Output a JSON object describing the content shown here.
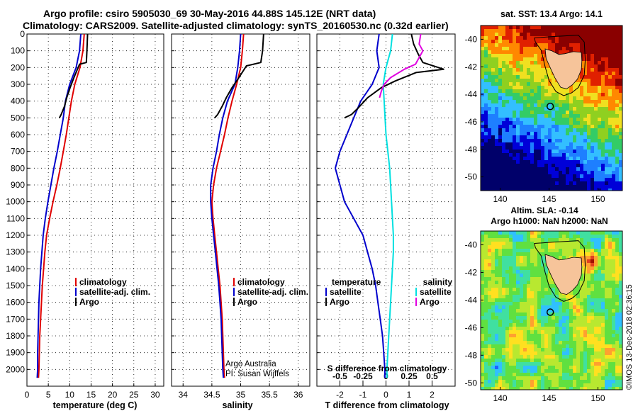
{
  "title": {
    "line1": "Argo profile: csiro 5905030_69 30-May-2016 44.88S 145.12E (NRT data)",
    "line2": "Climatology: CARS2009. Satellite-adjusted climatology: synTS_20160530.nc (0.32d earlier)"
  },
  "credit": {
    "line1": "Argo Australia",
    "line2": "PI: Susan Wijffels"
  },
  "stamp": "©IMOS 13-Dec-2018 02:36:15",
  "colors": {
    "climatology": "#e00000",
    "satellite": "#0000cc",
    "argo": "#000000",
    "sat_salinity": "#00e0e0",
    "argo_salinity": "#e000e0",
    "land": "#f6c49a"
  },
  "chart_data": [
    {
      "id": "temperature",
      "type": "line",
      "xlabel": "temperature (deg C)",
      "ylabel": "",
      "xlim": [
        0,
        32
      ],
      "ylim": [
        2100,
        0
      ],
      "xticks": [
        0,
        5,
        10,
        15,
        20,
        25,
        30
      ],
      "yticks": [
        0,
        100,
        200,
        300,
        400,
        500,
        600,
        700,
        800,
        900,
        1000,
        1100,
        1200,
        1300,
        1400,
        1500,
        1600,
        1700,
        1800,
        1900,
        2000
      ],
      "legend": [
        "climatology",
        "satellite-adj. clim.",
        "Argo"
      ],
      "series": [
        {
          "name": "climatology",
          "color": "#e00000",
          "points": [
            [
              13.4,
              0
            ],
            [
              13.1,
              100
            ],
            [
              12.4,
              200
            ],
            [
              11.2,
              300
            ],
            [
              10.4,
              400
            ],
            [
              9.8,
              500
            ],
            [
              9.2,
              600
            ],
            [
              8.5,
              700
            ],
            [
              7.8,
              800
            ],
            [
              7.0,
              900
            ],
            [
              6.1,
              1000
            ],
            [
              5.3,
              1100
            ],
            [
              4.6,
              1200
            ],
            [
              4.2,
              1300
            ],
            [
              3.9,
              1400
            ],
            [
              3.6,
              1500
            ],
            [
              3.4,
              1600
            ],
            [
              3.2,
              1700
            ],
            [
              3.0,
              1800
            ],
            [
              2.9,
              1900
            ],
            [
              2.8,
              2000
            ],
            [
              2.7,
              2050
            ]
          ]
        },
        {
          "name": "satellite-adj. clim.",
          "color": "#0000cc",
          "points": [
            [
              12.6,
              0
            ],
            [
              12.3,
              100
            ],
            [
              11.5,
              200
            ],
            [
              10.0,
              300
            ],
            [
              9.0,
              400
            ],
            [
              8.5,
              500
            ],
            [
              7.8,
              600
            ],
            [
              7.1,
              700
            ],
            [
              6.3,
              800
            ],
            [
              5.6,
              900
            ],
            [
              4.9,
              1000
            ],
            [
              4.3,
              1100
            ],
            [
              3.8,
              1200
            ],
            [
              3.5,
              1300
            ],
            [
              3.2,
              1400
            ],
            [
              3.0,
              1500
            ],
            [
              2.8,
              1600
            ],
            [
              2.7,
              1700
            ],
            [
              2.6,
              1800
            ],
            [
              2.5,
              1900
            ],
            [
              2.5,
              2000
            ],
            [
              2.4,
              2050
            ]
          ]
        },
        {
          "name": "Argo",
          "color": "#000000",
          "points": [
            [
              14.2,
              -10
            ],
            [
              14.1,
              60
            ],
            [
              14.0,
              120
            ],
            [
              13.9,
              170
            ],
            [
              12.3,
              180
            ],
            [
              11.0,
              260
            ],
            [
              10.1,
              320
            ],
            [
              9.3,
              380
            ],
            [
              8.8,
              430
            ],
            [
              8.0,
              480
            ],
            [
              7.6,
              500
            ]
          ]
        }
      ]
    },
    {
      "id": "salinity",
      "type": "line",
      "xlabel": "salinity",
      "ylabel": "",
      "xlim": [
        33.8,
        36.2
      ],
      "ylim": [
        2100,
        0
      ],
      "xticks": [
        34,
        34.5,
        35,
        35.5,
        36
      ],
      "legend": [
        "climatology",
        "satellite-adj. clim.",
        "Argo"
      ],
      "series": [
        {
          "name": "climatology",
          "color": "#e00000",
          "points": [
            [
              35.05,
              0
            ],
            [
              35.03,
              100
            ],
            [
              35.0,
              200
            ],
            [
              34.93,
              300
            ],
            [
              34.85,
              400
            ],
            [
              34.78,
              500
            ],
            [
              34.72,
              600
            ],
            [
              34.65,
              700
            ],
            [
              34.58,
              800
            ],
            [
              34.53,
              900
            ],
            [
              34.5,
              1000
            ],
            [
              34.52,
              1100
            ],
            [
              34.55,
              1200
            ],
            [
              34.58,
              1300
            ],
            [
              34.61,
              1400
            ],
            [
              34.64,
              1500
            ],
            [
              34.66,
              1600
            ],
            [
              34.68,
              1700
            ],
            [
              34.69,
              1800
            ],
            [
              34.7,
              1900
            ],
            [
              34.71,
              2000
            ],
            [
              34.72,
              2050
            ]
          ]
        },
        {
          "name": "satellite-adj. clim.",
          "color": "#0000cc",
          "points": [
            [
              35.0,
              0
            ],
            [
              34.98,
              100
            ],
            [
              34.95,
              200
            ],
            [
              34.9,
              300
            ],
            [
              34.77,
              400
            ],
            [
              34.69,
              500
            ],
            [
              34.63,
              600
            ],
            [
              34.58,
              700
            ],
            [
              34.52,
              800
            ],
            [
              34.48,
              900
            ],
            [
              34.48,
              1000
            ],
            [
              34.5,
              1100
            ],
            [
              34.53,
              1200
            ],
            [
              34.56,
              1300
            ],
            [
              34.59,
              1400
            ],
            [
              34.62,
              1500
            ],
            [
              34.64,
              1600
            ],
            [
              34.66,
              1700
            ],
            [
              34.67,
              1800
            ],
            [
              34.68,
              1900
            ],
            [
              34.69,
              2000
            ],
            [
              34.7,
              2050
            ]
          ]
        },
        {
          "name": "Argo",
          "color": "#000000",
          "points": [
            [
              35.4,
              -10
            ],
            [
              35.38,
              100
            ],
            [
              35.35,
              170
            ],
            [
              35.1,
              190
            ],
            [
              34.95,
              270
            ],
            [
              34.85,
              320
            ],
            [
              34.75,
              380
            ],
            [
              34.68,
              430
            ],
            [
              34.6,
              480
            ],
            [
              34.55,
              500
            ]
          ]
        }
      ]
    },
    {
      "id": "difference",
      "type": "line",
      "xlabel": "T difference from climatology",
      "ylabel": "",
      "second_axis_label": "S difference from climatology",
      "xlim": [
        -3,
        3
      ],
      "ylim": [
        2100,
        0
      ],
      "xticks": [
        -2,
        -1,
        0,
        1,
        2
      ],
      "second_xticks": [
        -0.5,
        -0.25,
        0,
        0.25,
        0.5
      ],
      "second_xlim": [
        -0.75,
        0.75
      ],
      "legend_left": [
        "temperature",
        "satellite",
        "Argo"
      ],
      "legend_right": [
        "salinity",
        "satellite",
        "Argo"
      ],
      "series": [
        {
          "name": "temperature satellite",
          "color": "#0000cc",
          "axis": "T",
          "points": [
            [
              -0.3,
              0
            ],
            [
              -0.4,
              100
            ],
            [
              -0.3,
              200
            ],
            [
              -0.6,
              300
            ],
            [
              -1.1,
              400
            ],
            [
              -1.4,
              500
            ],
            [
              -1.7,
              600
            ],
            [
              -2.0,
              700
            ],
            [
              -2.2,
              800
            ],
            [
              -2.0,
              900
            ],
            [
              -1.8,
              1000
            ],
            [
              -1.4,
              1100
            ],
            [
              -1.0,
              1200
            ],
            [
              -0.8,
              1300
            ],
            [
              -0.6,
              1400
            ],
            [
              -0.45,
              1500
            ],
            [
              -0.35,
              1600
            ],
            [
              -0.25,
              1700
            ],
            [
              -0.15,
              1800
            ],
            [
              -0.1,
              1900
            ],
            [
              -0.05,
              2000
            ],
            [
              -0.05,
              2050
            ]
          ]
        },
        {
          "name": "temperature Argo",
          "color": "#000000",
          "axis": "T",
          "points": [
            [
              1.1,
              0
            ],
            [
              1.2,
              60
            ],
            [
              1.4,
              120
            ],
            [
              1.6,
              170
            ],
            [
              2.5,
              210
            ],
            [
              1.3,
              230
            ],
            [
              0.4,
              280
            ],
            [
              -0.2,
              320
            ],
            [
              -0.8,
              380
            ],
            [
              -1.2,
              440
            ],
            [
              -1.5,
              480
            ],
            [
              -1.8,
              500
            ]
          ]
        },
        {
          "name": "salinity satellite",
          "color": "#00e0e0",
          "axis": "S",
          "points": [
            [
              0.07,
              0
            ],
            [
              0.05,
              100
            ],
            [
              0.0,
              200
            ],
            [
              -0.03,
              300
            ],
            [
              -0.02,
              400
            ],
            [
              -0.01,
              500
            ],
            [
              0.0,
              600
            ],
            [
              0.02,
              700
            ],
            [
              0.04,
              800
            ],
            [
              0.05,
              900
            ],
            [
              0.06,
              1000
            ],
            [
              0.07,
              1100
            ],
            [
              0.08,
              1200
            ],
            [
              0.08,
              1300
            ],
            [
              0.07,
              1400
            ],
            [
              0.06,
              1500
            ],
            [
              0.05,
              1600
            ],
            [
              0.04,
              1700
            ],
            [
              0.03,
              1800
            ],
            [
              0.02,
              1900
            ],
            [
              0.01,
              2000
            ],
            [
              0.01,
              2050
            ]
          ]
        },
        {
          "name": "salinity Argo",
          "color": "#e000e0",
          "axis": "S",
          "points": [
            [
              0.38,
              -10
            ],
            [
              0.36,
              60
            ],
            [
              0.4,
              100
            ],
            [
              0.35,
              150
            ],
            [
              0.32,
              180
            ],
            [
              0.2,
              210
            ],
            [
              0.05,
              260
            ],
            [
              -0.02,
              300
            ],
            [
              -0.05,
              340
            ],
            [
              -0.07,
              380
            ]
          ]
        }
      ]
    },
    {
      "id": "sst_map",
      "type": "heatmap",
      "title": "sat. SST: 13.4 Argo: 14.1",
      "xlim": [
        138,
        152.5
      ],
      "ylim": [
        -51,
        -39
      ],
      "xticks": [
        140,
        145,
        150
      ],
      "yticks": [
        -40,
        -42,
        -44,
        -46,
        -48,
        -50
      ],
      "marker": [
        145.12,
        -44.88
      ],
      "colorscale": [
        "#00006a",
        "#0000d8",
        "#1e7fff",
        "#33bfff",
        "#33cc66",
        "#8fd020",
        "#f0e020",
        "#ff8800",
        "#e02000",
        "#8a0000"
      ]
    },
    {
      "id": "sla_map",
      "type": "heatmap",
      "title": "Altim. SLA: -0.14",
      "subtitle": "Argo h1000: NaN h2000: NaN",
      "xlim": [
        138,
        152.5
      ],
      "ylim": [
        -50.5,
        -39
      ],
      "xticks": [
        140,
        145,
        150
      ],
      "yticks": [
        -40,
        -42,
        -44,
        -46,
        -48,
        -50
      ],
      "marker": [
        145.12,
        -44.88
      ],
      "colorscale": [
        "#2060ff",
        "#30c0ff",
        "#40e0a0",
        "#60e040",
        "#b8e830",
        "#ffe020",
        "#ffa030",
        "#e04020",
        "#a01000"
      ]
    }
  ]
}
